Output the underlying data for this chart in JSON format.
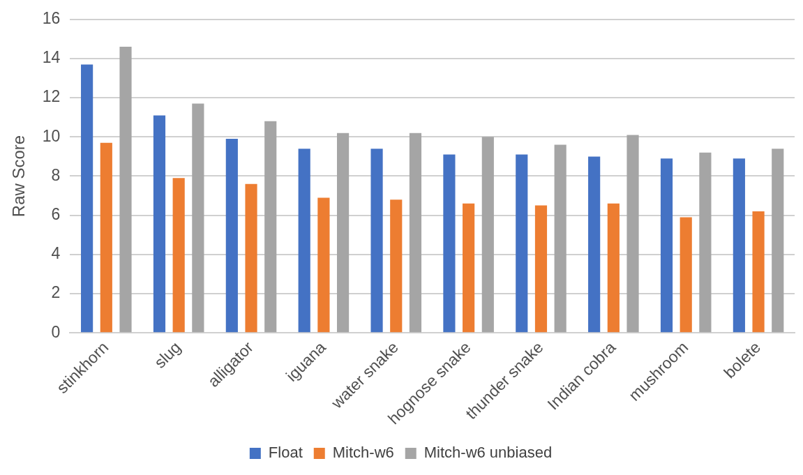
{
  "chart_data": {
    "type": "bar",
    "ylabel": "Raw Score",
    "categories": [
      "stinkhorn",
      "slug",
      "alligator",
      "iguana",
      "water snake",
      "hognose snake",
      "thunder snake",
      "Indian cobra",
      "mushroom",
      "bolete"
    ],
    "series": [
      {
        "name": "Float",
        "color": "#4472c4",
        "values": [
          13.7,
          11.1,
          9.9,
          9.4,
          9.4,
          9.1,
          9.1,
          9.0,
          8.9,
          8.9
        ]
      },
      {
        "name": "Mitch-w6",
        "color": "#ed7d31",
        "values": [
          9.7,
          7.9,
          7.6,
          6.9,
          6.8,
          6.6,
          6.5,
          6.6,
          5.9,
          6.2
        ]
      },
      {
        "name": "Mitch-w6 unbiased",
        "color": "#a5a5a5",
        "values": [
          14.6,
          11.7,
          10.8,
          10.2,
          10.2,
          10.0,
          9.6,
          10.1,
          9.2,
          9.4
        ]
      }
    ],
    "ylim": [
      0,
      16
    ],
    "yticks": [
      0,
      2,
      4,
      6,
      8,
      10,
      12,
      14,
      16
    ],
    "grid": "y",
    "legend": "bottom"
  }
}
